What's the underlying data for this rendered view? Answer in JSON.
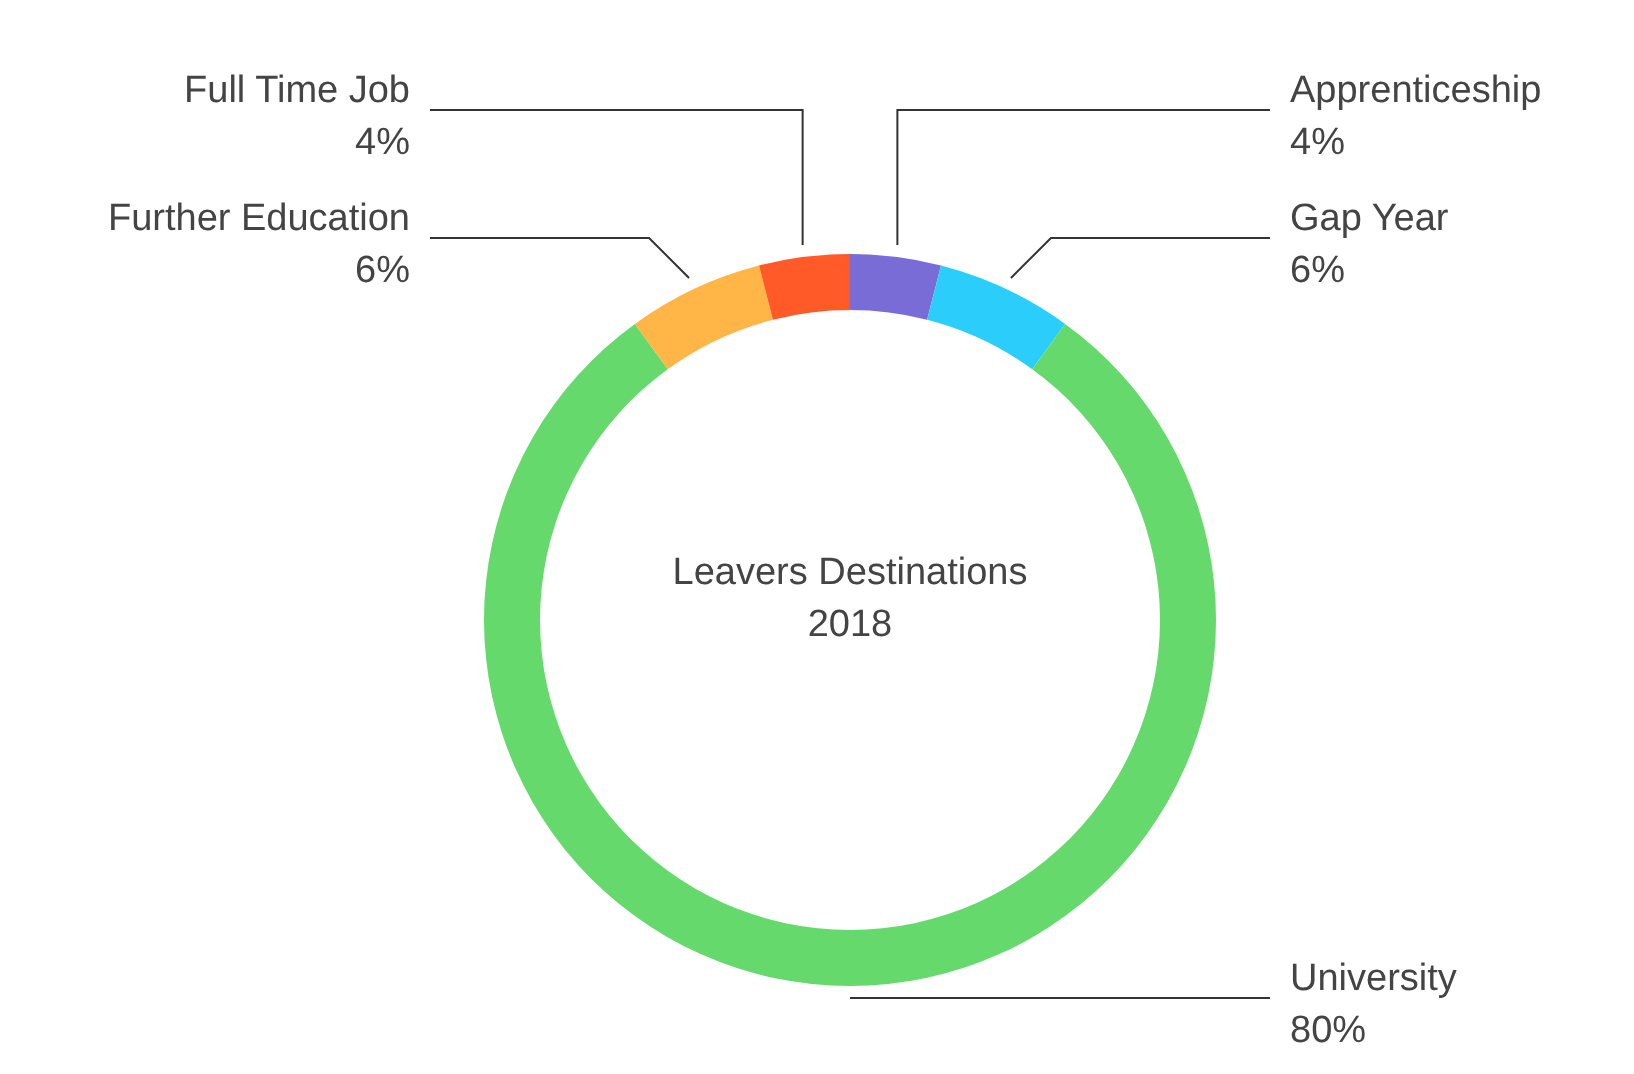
{
  "chart_data": {
    "type": "donut",
    "title": "Leavers Destinations",
    "subtitle": "2018",
    "categories": [
      "Apprenticeship",
      "Gap Year",
      "University",
      "Further Education",
      "Full Time Job"
    ],
    "values": [
      4,
      6,
      80,
      6,
      4
    ],
    "colors": [
      "#7a6cd6",
      "#2bcdfb",
      "#65d96b",
      "#ffb646",
      "#ff5a28"
    ],
    "value_labels": [
      "4%",
      "6%",
      "80%",
      "6%",
      "4%"
    ]
  }
}
